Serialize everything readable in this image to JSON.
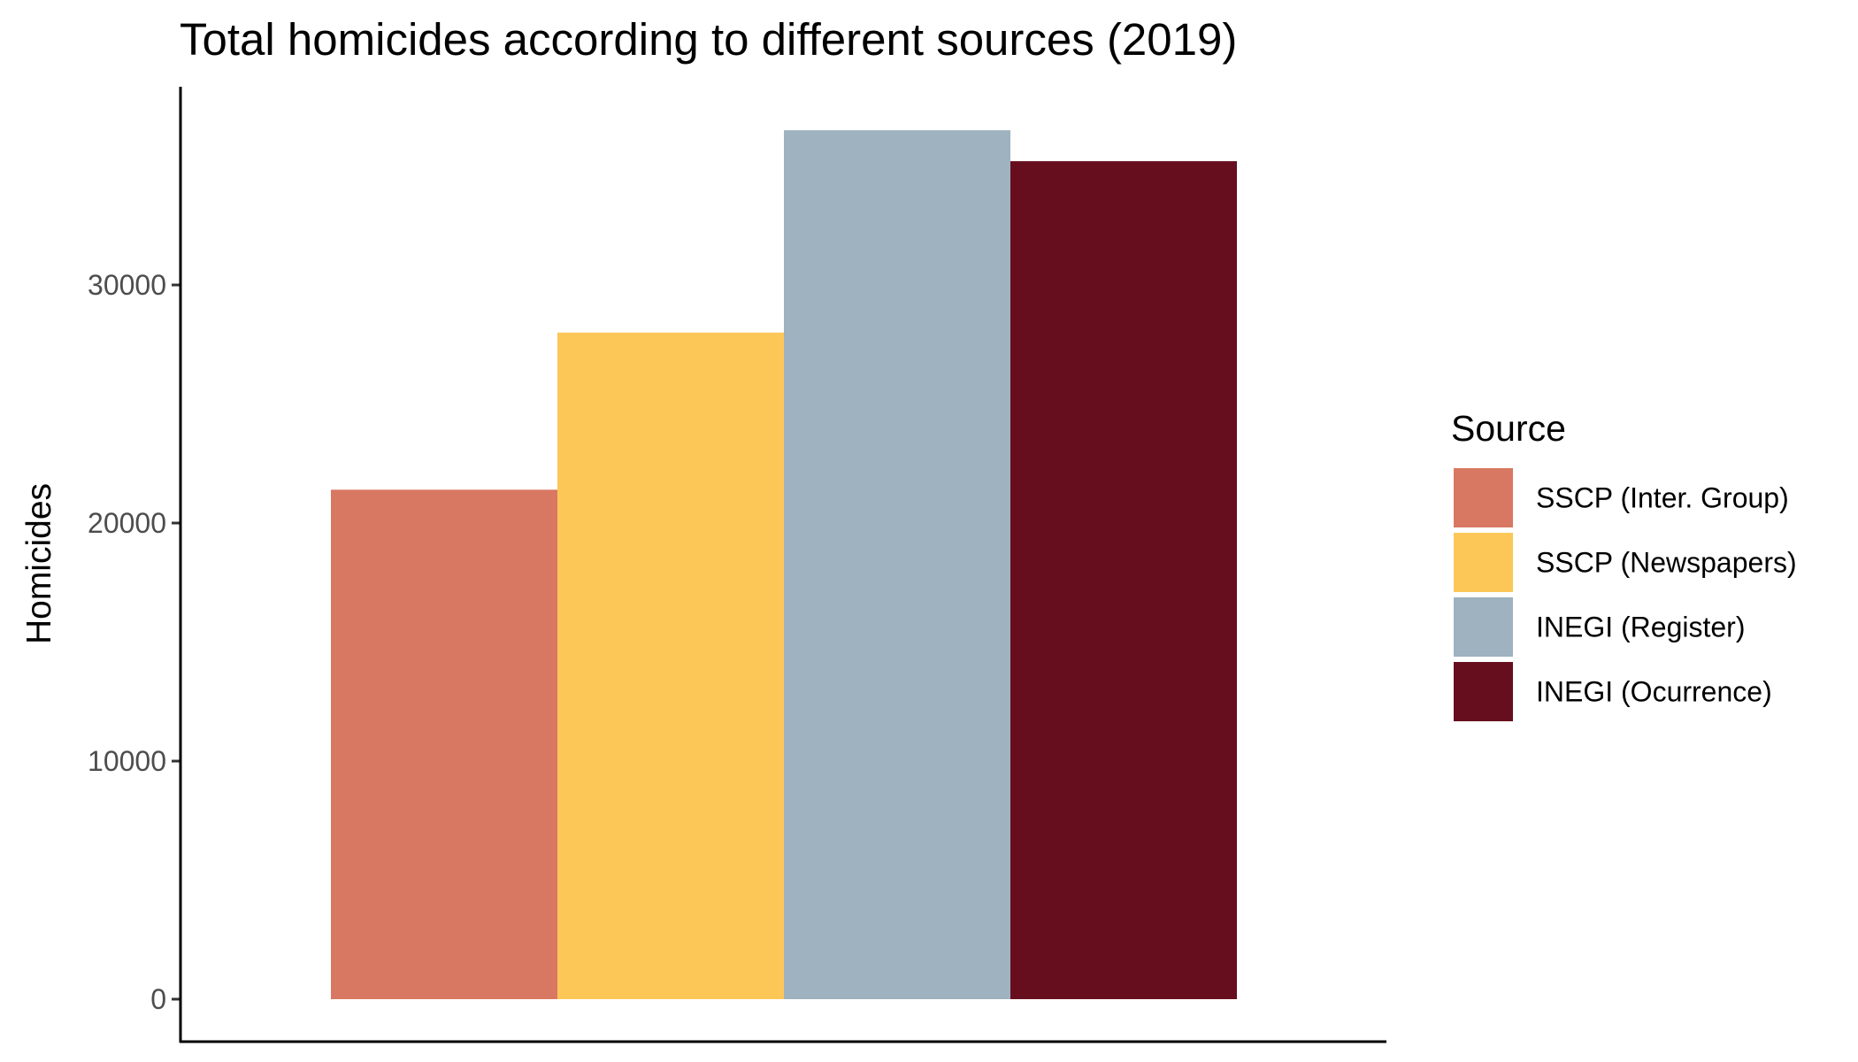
{
  "chart_data": {
    "type": "bar",
    "title": "Total homicides according to different sources (2019)",
    "xlabel": "",
    "ylabel": "Homicides",
    "ylim": [
      0,
      37500
    ],
    "yticks": [
      0,
      10000,
      20000,
      30000
    ],
    "ytick_labels": [
      "0",
      "10000",
      "20000",
      "30000"
    ],
    "grid": false,
    "legend": {
      "title": "Source",
      "placement": "right"
    },
    "categories": [
      "SSCP (Inter. Group)",
      "SSCP (Newspapers)",
      "INEGI (Register)",
      "INEGI (Ocurrence)"
    ],
    "values": [
      21400,
      28000,
      36500,
      35200
    ],
    "colors": [
      "#d97862",
      "#fdc758",
      "#9eb2c0",
      "#660e1d"
    ]
  }
}
